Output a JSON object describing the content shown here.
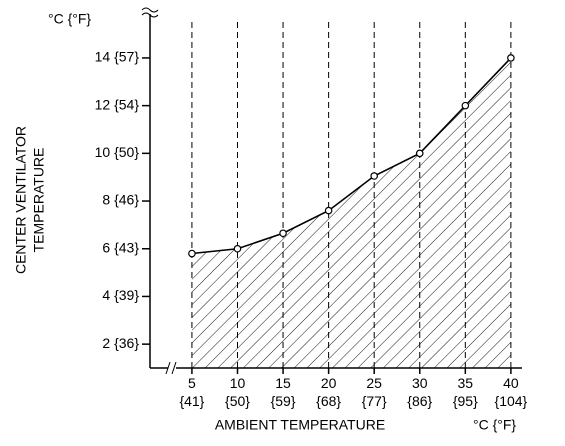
{
  "chart_data": {
    "type": "line",
    "y_unit": "°C {°F}",
    "x_unit": "°C {°F}",
    "xlabel": "AMBIENT TEMPERATURE",
    "ylabel": [
      "CENTER VENTILATOR",
      "TEMPERATURE"
    ],
    "x": [
      5,
      10,
      15,
      20,
      25,
      30,
      35,
      40
    ],
    "series": [
      {
        "color": "#000000",
        "values": [
          5.8,
          6.0,
          6.65,
          7.6,
          9.05,
          10.0,
          12.0,
          14.0
        ]
      }
    ],
    "xlim": [
      0.4,
      41
    ],
    "ylim": [
      1,
      15.8
    ],
    "xticks": [
      {
        "value": 5,
        "label": "5 {41}"
      },
      {
        "value": 10,
        "label": "10 {50}"
      },
      {
        "value": 15,
        "label": "15 {59}"
      },
      {
        "value": 20,
        "label": "20 {68}"
      },
      {
        "value": 25,
        "label": "25 {77}"
      },
      {
        "value": 30,
        "label": "30 {86}"
      },
      {
        "value": 35,
        "label": "35 {95}"
      },
      {
        "value": 40,
        "label": "40 {104}"
      }
    ],
    "yticks": [
      {
        "value": 2,
        "label": "2 {36}"
      },
      {
        "value": 4,
        "label": "4 {39}"
      },
      {
        "value": 6,
        "label": "6 {43}"
      },
      {
        "value": 8,
        "label": "8 {46}"
      },
      {
        "value": 10,
        "label": "10 {50}"
      },
      {
        "value": 12,
        "label": "12 {54}"
      },
      {
        "value": 14,
        "label": "14 {57}"
      }
    ],
    "grid": true,
    "hatched": true
  }
}
